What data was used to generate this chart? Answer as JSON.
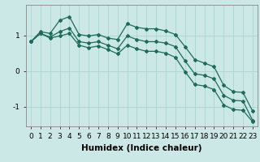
{
  "xlabel": "Humidex (Indice chaleur)",
  "bg_color": "#cce8e6",
  "line_color": "#1e6b5e",
  "grid_color": "#aad4d0",
  "xlim": [
    -0.5,
    23.5
  ],
  "ylim": [
    -1.55,
    1.85
  ],
  "yticks": [
    -1,
    0,
    1
  ],
  "xticks": [
    0,
    1,
    2,
    3,
    4,
    5,
    6,
    7,
    8,
    9,
    10,
    11,
    12,
    13,
    14,
    15,
    16,
    17,
    18,
    19,
    20,
    21,
    22,
    23
  ],
  "series1_x": [
    0,
    1,
    2,
    3,
    4,
    5,
    6,
    7,
    8,
    9,
    10,
    11,
    12,
    13,
    14,
    15,
    16,
    17,
    18,
    19,
    20,
    21,
    22,
    23
  ],
  "series1_y": [
    0.82,
    1.1,
    1.05,
    1.42,
    1.52,
    1.02,
    0.98,
    1.02,
    0.92,
    0.88,
    1.32,
    1.22,
    1.18,
    1.18,
    1.12,
    1.02,
    0.68,
    0.32,
    0.22,
    0.12,
    -0.4,
    -0.58,
    -0.6,
    -1.12
  ],
  "series2_x": [
    0,
    1,
    2,
    3,
    4,
    5,
    6,
    7,
    8,
    9,
    10,
    11,
    12,
    13,
    14,
    15,
    16,
    17,
    18,
    19,
    20,
    21,
    22,
    23
  ],
  "series2_y": [
    0.82,
    1.05,
    0.95,
    1.1,
    1.2,
    0.82,
    0.78,
    0.82,
    0.72,
    0.62,
    0.98,
    0.88,
    0.82,
    0.82,
    0.78,
    0.68,
    0.28,
    -0.08,
    -0.12,
    -0.22,
    -0.68,
    -0.82,
    -0.84,
    -1.38
  ],
  "series3_x": [
    0,
    1,
    2,
    3,
    4,
    5,
    6,
    7,
    8,
    9,
    10,
    11,
    12,
    13,
    14,
    15,
    16,
    17,
    18,
    19,
    20,
    21,
    22,
    23
  ],
  "series3_y": [
    0.82,
    1.05,
    0.92,
    0.98,
    1.05,
    0.72,
    0.65,
    0.7,
    0.6,
    0.48,
    0.72,
    0.62,
    0.55,
    0.55,
    0.5,
    0.38,
    -0.02,
    -0.38,
    -0.42,
    -0.52,
    -0.95,
    -1.08,
    -1.1,
    -1.42
  ],
  "font_size_label": 7.5,
  "font_size_tick": 6.5,
  "marker_size": 2.0,
  "line_width": 0.9
}
